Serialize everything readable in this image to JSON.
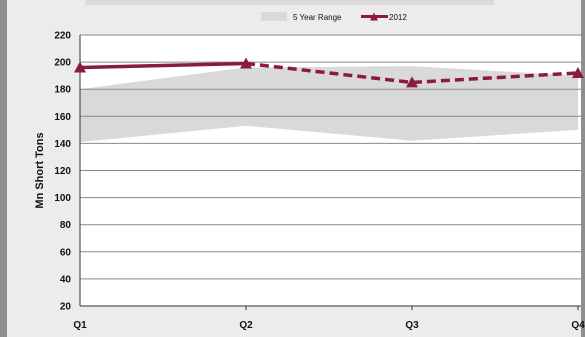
{
  "chart_data": {
    "type": "line",
    "title": "",
    "xlabel": "",
    "ylabel": "Mn Short Tons",
    "categories": [
      "Q1",
      "Q2",
      "Q3",
      "Q4"
    ],
    "ylim": [
      20,
      220
    ],
    "yticks": [
      20,
      40,
      60,
      80,
      100,
      120,
      140,
      160,
      180,
      200,
      220
    ],
    "grid": true,
    "legend": "top-center",
    "range_band": {
      "name": "5 Year Range",
      "low": [
        141,
        153,
        142,
        150
      ],
      "high": [
        180,
        196,
        197,
        190
      ],
      "color": "#d9d9d9"
    },
    "series": [
      {
        "name": "2012",
        "values": [
          196,
          199,
          185,
          192
        ],
        "color": "#8b1a3f",
        "solid_until_index": 1,
        "marker": "triangle"
      }
    ]
  }
}
